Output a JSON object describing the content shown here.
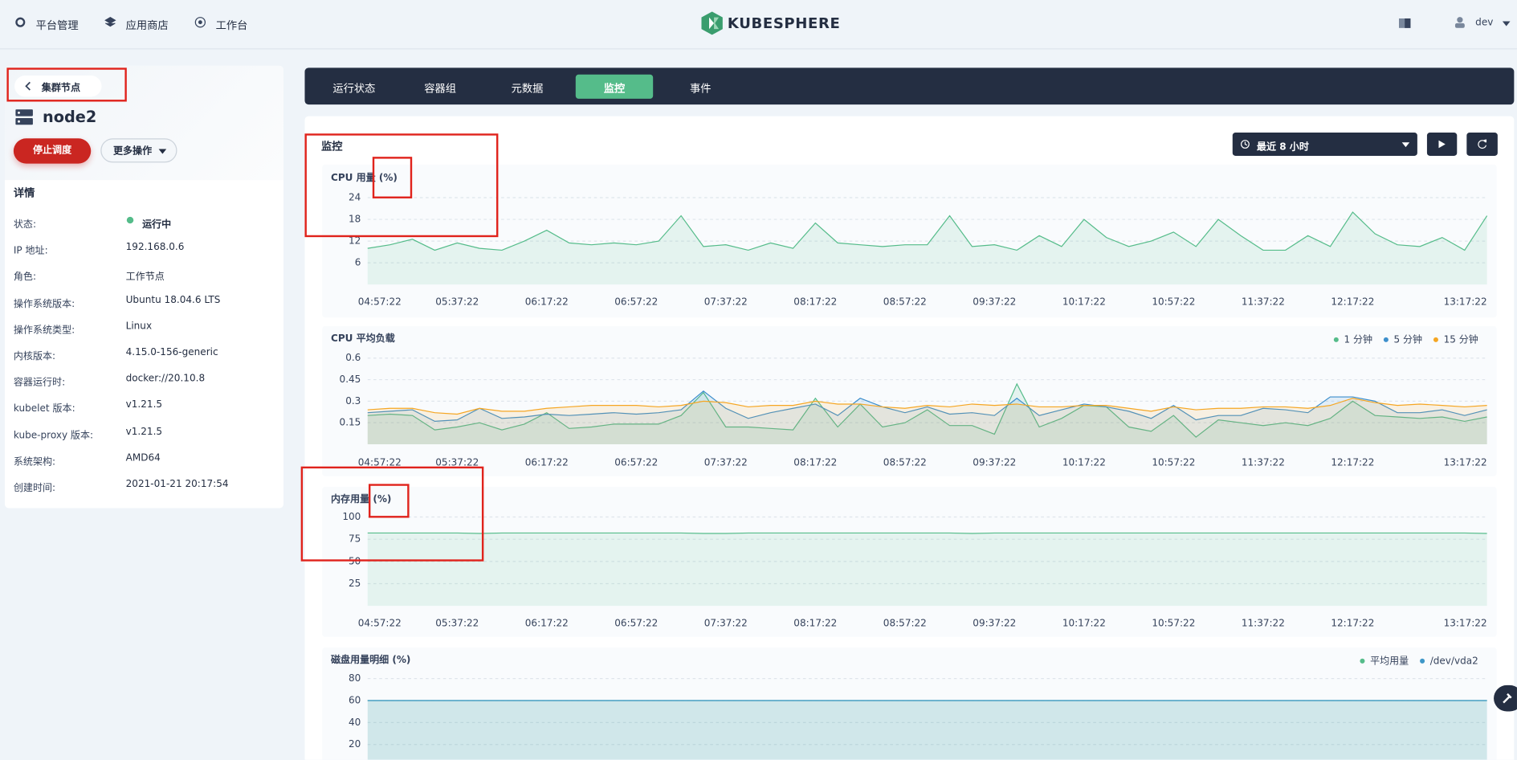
{
  "header": {
    "nav": [
      "平台管理",
      "应用商店",
      "工作台"
    ],
    "logo": "KUBESPHERE",
    "user": "dev"
  },
  "sidebar": {
    "back": "集群节点",
    "node": "node2",
    "buttons": [
      "停止调度",
      "更多操作"
    ],
    "details_title": "详情",
    "details": [
      {
        "label": "状态:",
        "value": "运行中"
      },
      {
        "label": "IP 地址:",
        "value": "192.168.0.6"
      },
      {
        "label": "角色:",
        "value": "工作节点"
      },
      {
        "label": "操作系统版本:",
        "value": "Ubuntu 18.04.6 LTS"
      },
      {
        "label": "操作系统类型:",
        "value": "Linux"
      },
      {
        "label": "内核版本:",
        "value": "4.15.0-156-generic"
      },
      {
        "label": "容器运行时:",
        "value": "docker://20.10.8"
      },
      {
        "label": "kubelet 版本:",
        "value": "v1.21.5"
      },
      {
        "label": "kube-proxy 版本:",
        "value": "v1.21.5"
      },
      {
        "label": "系统架构:",
        "value": "AMD64"
      },
      {
        "label": "创建时间:",
        "value": "2021-01-21 20:17:54"
      }
    ]
  },
  "tabs": {
    "items": [
      "运行状态",
      "容器组",
      "元数据",
      "监控",
      "事件"
    ],
    "active": 3
  },
  "monitor": {
    "title": "监控",
    "time_range": "最近 8 小时"
  },
  "chart_data": [
    {
      "type": "line",
      "area": true,
      "title": "CPU 用量 (%)",
      "ylim": [
        0,
        27
      ],
      "yticks": [
        6,
        12,
        18,
        24
      ],
      "grid": true,
      "categories": [
        "04:57:22",
        null,
        null,
        null,
        "05:37:22",
        null,
        null,
        null,
        "06:17:22",
        null,
        null,
        null,
        "06:57:22",
        null,
        null,
        null,
        "07:37:22",
        null,
        null,
        null,
        "08:17:22",
        null,
        null,
        null,
        "08:57:22",
        null,
        null,
        null,
        "09:37:22",
        null,
        null,
        null,
        "10:17:22",
        null,
        null,
        null,
        "10:57:22",
        null,
        null,
        null,
        "11:37:22",
        null,
        null,
        null,
        "12:17:22",
        null,
        null,
        null,
        null,
        null,
        "13:17:22"
      ],
      "series": [
        {
          "name": "CPU 用量",
          "color": "#55bc8a",
          "values": [
            10,
            11,
            12.5,
            9.5,
            11.5,
            10,
            9.5,
            12,
            15,
            11.5,
            11,
            11.5,
            11,
            12,
            19,
            10.5,
            11,
            9.5,
            11.5,
            10,
            17,
            11.5,
            11,
            10.5,
            11,
            11,
            19,
            10.5,
            11,
            9.5,
            13.5,
            10.5,
            18,
            13,
            10.5,
            12,
            14.5,
            10.5,
            18,
            13.5,
            9.5,
            9.5,
            13.5,
            10.5,
            20,
            14,
            11,
            10.5,
            13,
            9.5,
            19
          ]
        }
      ]
    },
    {
      "type": "line",
      "area": true,
      "title": "CPU 平均负载",
      "ylim": [
        0,
        0.6
      ],
      "yticks": [
        0.15,
        0.3,
        0.45,
        0.6
      ],
      "grid": true,
      "legend": "top-right",
      "categories": [
        "04:57:22",
        null,
        null,
        null,
        "05:37:22",
        null,
        null,
        null,
        "06:17:22",
        null,
        null,
        null,
        "06:57:22",
        null,
        null,
        null,
        "07:37:22",
        null,
        null,
        null,
        "08:17:22",
        null,
        null,
        null,
        "08:57:22",
        null,
        null,
        null,
        "09:37:22",
        null,
        null,
        null,
        "10:17:22",
        null,
        null,
        null,
        "10:57:22",
        null,
        null,
        null,
        "11:37:22",
        null,
        null,
        null,
        "12:17:22",
        null,
        null,
        null,
        null,
        null,
        "13:17:22"
      ],
      "series": [
        {
          "name": "1 分钟",
          "color": "#55bc8a",
          "values": [
            0.2,
            0.21,
            0.2,
            0.1,
            0.12,
            0.15,
            0.1,
            0.14,
            0.22,
            0.11,
            0.12,
            0.14,
            0.14,
            0.14,
            0.2,
            0.36,
            0.12,
            0.12,
            0.11,
            0.1,
            0.32,
            0.12,
            0.28,
            0.12,
            0.15,
            0.24,
            0.13,
            0.13,
            0.07,
            0.42,
            0.12,
            0.18,
            0.27,
            0.26,
            0.12,
            0.09,
            0.2,
            0.05,
            0.17,
            0.15,
            0.13,
            0.15,
            0.13,
            0.18,
            0.3,
            0.2,
            0.19,
            0.18,
            0.19,
            0.16,
            0.19
          ]
        },
        {
          "name": "5 分钟",
          "color": "#3d8fcc",
          "values": [
            0.22,
            0.23,
            0.24,
            0.16,
            0.17,
            0.25,
            0.18,
            0.19,
            0.21,
            0.2,
            0.21,
            0.22,
            0.21,
            0.22,
            0.24,
            0.37,
            0.25,
            0.18,
            0.22,
            0.25,
            0.28,
            0.2,
            0.32,
            0.26,
            0.22,
            0.26,
            0.21,
            0.22,
            0.2,
            0.32,
            0.2,
            0.24,
            0.28,
            0.26,
            0.23,
            0.18,
            0.27,
            0.17,
            0.2,
            0.2,
            0.25,
            0.24,
            0.22,
            0.33,
            0.33,
            0.3,
            0.22,
            0.22,
            0.24,
            0.2,
            0.24
          ]
        },
        {
          "name": "15 分钟",
          "color": "#f5a623",
          "values": [
            0.24,
            0.25,
            0.25,
            0.22,
            0.21,
            0.25,
            0.23,
            0.23,
            0.25,
            0.26,
            0.27,
            0.27,
            0.27,
            0.26,
            0.27,
            0.3,
            0.29,
            0.26,
            0.27,
            0.27,
            0.3,
            0.28,
            0.28,
            0.26,
            0.25,
            0.27,
            0.26,
            0.28,
            0.27,
            0.28,
            0.26,
            0.26,
            0.27,
            0.27,
            0.25,
            0.23,
            0.26,
            0.24,
            0.25,
            0.25,
            0.26,
            0.26,
            0.25,
            0.27,
            0.32,
            0.29,
            0.27,
            0.28,
            0.27,
            0.26,
            0.27
          ]
        }
      ]
    },
    {
      "type": "line",
      "area": true,
      "title": "内存用量 (%)",
      "ylim": [
        0,
        110
      ],
      "yticks": [
        25,
        50,
        75,
        100
      ],
      "grid": true,
      "categories": [
        "04:57:22",
        null,
        null,
        null,
        "05:37:22",
        null,
        null,
        null,
        "06:17:22",
        null,
        null,
        null,
        "06:57:22",
        null,
        null,
        null,
        "07:37:22",
        null,
        null,
        null,
        "08:17:22",
        null,
        null,
        null,
        "08:57:22",
        null,
        null,
        null,
        "09:37:22",
        null,
        null,
        null,
        "10:17:22",
        null,
        null,
        null,
        "10:57:22",
        null,
        null,
        null,
        "11:37:22",
        null,
        null,
        null,
        "12:17:22",
        null,
        null,
        null,
        null,
        null,
        "13:17:22"
      ],
      "series": [
        {
          "name": "内存用量",
          "color": "#55bc8a",
          "values": [
            82,
            82,
            82,
            82,
            82,
            81.5,
            82,
            82,
            82,
            82,
            82,
            82,
            82,
            82,
            82,
            81.5,
            81.5,
            82,
            82,
            82,
            82,
            82,
            82,
            82,
            82,
            82,
            82,
            81.5,
            82,
            82,
            82,
            82,
            82,
            82,
            82,
            82,
            82,
            82,
            82,
            82,
            82,
            82,
            82,
            82,
            82,
            82,
            82,
            82,
            82,
            82,
            81.5
          ]
        }
      ]
    },
    {
      "type": "line",
      "area": true,
      "title": "磁盘用量明细 (%)",
      "ylim": [
        0,
        88
      ],
      "yticks": [
        20,
        40,
        60,
        80
      ],
      "grid": true,
      "legend": "top-right",
      "series": [
        {
          "name": "平均用量",
          "color": "#55bc8a",
          "values": [
            60,
            60,
            60,
            60,
            60,
            60,
            60,
            60,
            60,
            60,
            60,
            60,
            60,
            60,
            60,
            60,
            60,
            60,
            60,
            60,
            60,
            60,
            60,
            60,
            60,
            60,
            60,
            60,
            60,
            60,
            60,
            60,
            60,
            60,
            60,
            60,
            60,
            60,
            60,
            60,
            60,
            60,
            60,
            60,
            60,
            60,
            60,
            60,
            60,
            60,
            60
          ]
        },
        {
          "name": "/dev/vda2",
          "color": "#3e97c8",
          "values": [
            60,
            60,
            60,
            60,
            60,
            60,
            60,
            60,
            60,
            60,
            60,
            60,
            60,
            60,
            60,
            60,
            60,
            60,
            60,
            60,
            60,
            60,
            60,
            60,
            60,
            60,
            60,
            60,
            60,
            60,
            60,
            60,
            60,
            60,
            60,
            60,
            60,
            60,
            60,
            60,
            60,
            60,
            60,
            60,
            60,
            60,
            60,
            60,
            60,
            60,
            60
          ]
        }
      ]
    }
  ]
}
